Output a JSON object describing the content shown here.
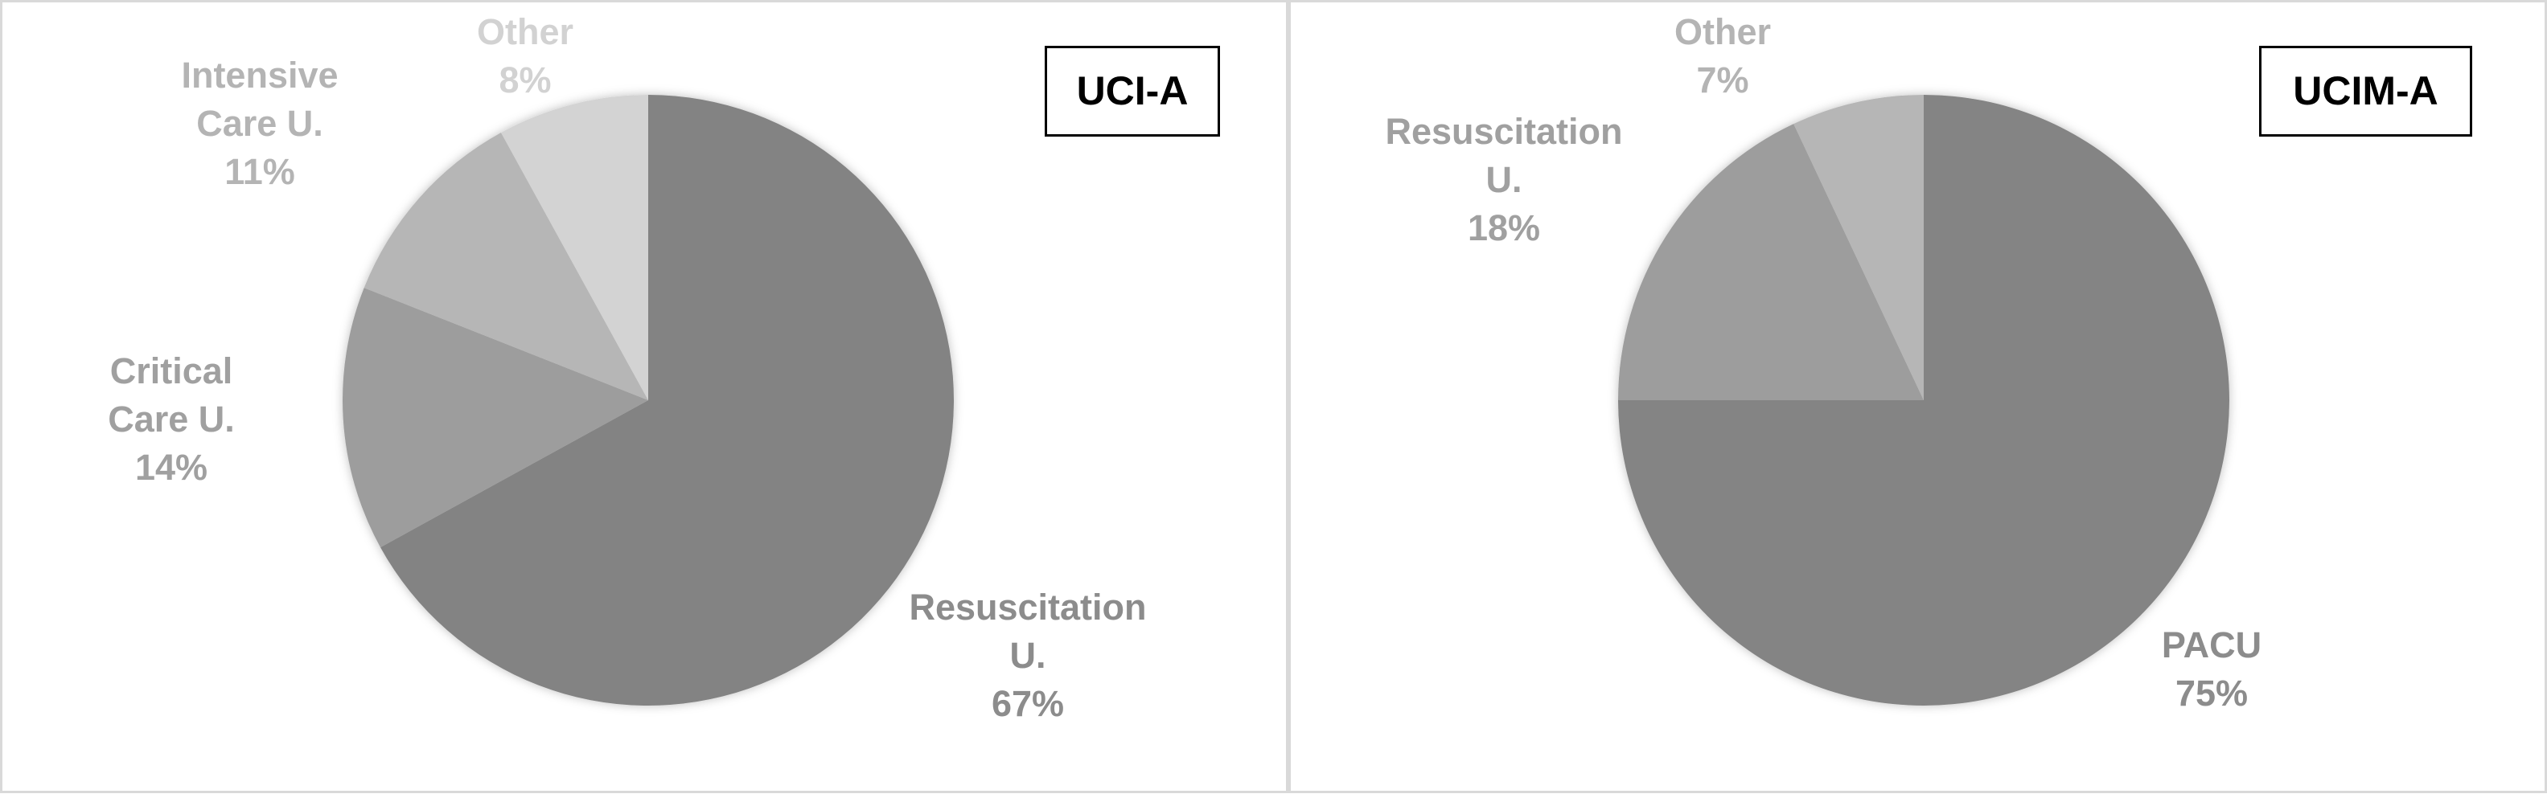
{
  "chart_data": [
    {
      "type": "pie",
      "title": "UCI-A",
      "slices": [
        {
          "label": "Resuscitation U.",
          "value": 67,
          "text": "Resuscitation U.\n67%",
          "color": "#838383",
          "label_color": "#8c8c8c"
        },
        {
          "label": "Critical Care U.",
          "value": 14,
          "text": "Critical\nCare U.\n14%",
          "color": "#9d9d9d",
          "label_color": "#a0a0a0"
        },
        {
          "label": "Intensive Care U.",
          "value": 11,
          "text": "Intensive\nCare U.\n11%",
          "color": "#b6b6b6",
          "label_color": "#b4b4b4"
        },
        {
          "label": "Other",
          "value": 8,
          "text": "Other\n8%",
          "color": "#d3d3d3",
          "label_color": "#d2d2d2"
        }
      ]
    },
    {
      "type": "pie",
      "title": "UCIM-A",
      "slices": [
        {
          "label": "PACU",
          "value": 75,
          "text": "PACU\n75%",
          "color": "#848484",
          "label_color": "#8c8c8c"
        },
        {
          "label": "Resuscitation U.",
          "value": 18,
          "text": "Resuscitation\nU.\n18%",
          "color": "#9d9d9d",
          "label_color": "#a0a0a0"
        },
        {
          "label": "Other",
          "value": 7,
          "text": "Other\n7%",
          "color": "#b6b6b6",
          "label_color": "#b4b4b4"
        }
      ]
    }
  ]
}
